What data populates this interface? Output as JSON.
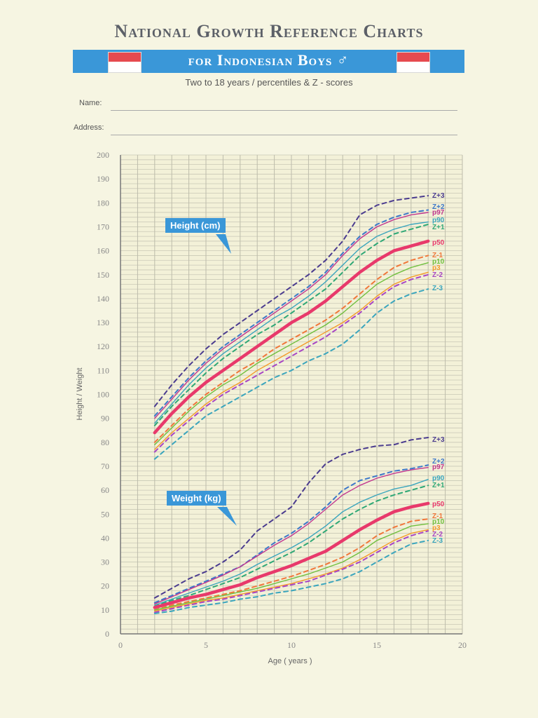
{
  "header": {
    "title": "National Growth Reference Charts",
    "banner": "for Indonesian Boys ♂",
    "subtitle": "Two to 18 years / percentiles & Z - scores"
  },
  "form": {
    "name_label": "Name:",
    "address_label": "Address:"
  },
  "annotations": {
    "height": "Height (cm)",
    "weight": "Weight (kg)"
  },
  "colors": {
    "Z+3": "#4b3c8f",
    "Z+2": "#3d78c9",
    "p97": "#c2378f",
    "p90": "#3aa5bd",
    "Z+1": "#2fa876",
    "p50": "#e8396b",
    "Z-1": "#f0773a",
    "p10": "#6fbf3d",
    "p3": "#f49b2a",
    "Z-2": "#a845c4",
    "Z-3": "#3aa5bd"
  },
  "chart_data": {
    "type": "line",
    "title": "National Growth Reference Charts for Indonesian Boys",
    "subtitle": "Two to 18 years / percentiles & Z - scores",
    "xlabel": "Age ( years )",
    "ylabel": "Height / Weight",
    "xlim": [
      0,
      20
    ],
    "ylim": [
      0,
      200
    ],
    "xticks": [
      0,
      5,
      10,
      15,
      20
    ],
    "yticks": [
      0,
      10,
      20,
      30,
      40,
      50,
      60,
      70,
      80,
      90,
      100,
      110,
      120,
      130,
      140,
      150,
      160,
      170,
      180,
      190,
      200
    ],
    "grid": true,
    "x": [
      2,
      3,
      4,
      5,
      6,
      7,
      8,
      9,
      10,
      11,
      12,
      13,
      14,
      15,
      16,
      17,
      18
    ],
    "height_series": [
      {
        "name": "Z+3",
        "dashed": true,
        "values": [
          95,
          104,
          112,
          119,
          125,
          130,
          135,
          140,
          145,
          150,
          156,
          164,
          175,
          179,
          181,
          182,
          183
        ]
      },
      {
        "name": "Z+2",
        "dashed": true,
        "values": [
          91,
          99,
          107,
          114,
          120,
          125,
          130,
          135,
          140,
          145,
          151,
          159,
          166,
          171,
          174,
          176,
          177
        ]
      },
      {
        "name": "p97",
        "dashed": false,
        "values": [
          90,
          98,
          106,
          113,
          119,
          124,
          129,
          134,
          139,
          144,
          150,
          158,
          165,
          170,
          173,
          175,
          176
        ]
      },
      {
        "name": "p90",
        "dashed": false,
        "values": [
          88,
          96,
          104,
          111,
          117,
          122,
          127,
          132,
          136,
          141,
          147,
          154,
          161,
          166,
          169,
          171,
          172
        ]
      },
      {
        "name": "Z+1",
        "dashed": true,
        "values": [
          87,
          95,
          102,
          109,
          115,
          120,
          125,
          129,
          134,
          139,
          144,
          151,
          158,
          163,
          167,
          169,
          171
        ]
      },
      {
        "name": "p50",
        "dashed": false,
        "values": [
          84,
          92,
          99,
          105,
          110,
          115,
          120,
          125,
          130,
          134,
          139,
          145,
          151,
          156,
          160,
          162,
          164
        ]
      },
      {
        "name": "Z-1",
        "dashed": true,
        "values": [
          80,
          87,
          94,
          100,
          105,
          110,
          114,
          119,
          123,
          127,
          131,
          136,
          142,
          148,
          153,
          156,
          158
        ]
      },
      {
        "name": "p10",
        "dashed": false,
        "values": [
          79,
          86,
          93,
          99,
          104,
          108,
          113,
          117,
          121,
          125,
          129,
          134,
          140,
          146,
          150,
          153,
          155
        ]
      },
      {
        "name": "p3",
        "dashed": false,
        "values": [
          77,
          84,
          90,
          96,
          101,
          105,
          110,
          114,
          118,
          122,
          126,
          130,
          135,
          141,
          146,
          149,
          151
        ]
      },
      {
        "name": "Z-2",
        "dashed": true,
        "values": [
          76,
          83,
          89,
          95,
          100,
          104,
          108,
          112,
          116,
          120,
          124,
          129,
          134,
          140,
          145,
          148,
          150
        ]
      },
      {
        "name": "Z-3",
        "dashed": true,
        "values": [
          73,
          79,
          85,
          91,
          95,
          99,
          103,
          107,
          110,
          114,
          117,
          121,
          127,
          134,
          139,
          142,
          144
        ]
      }
    ],
    "weight_series": [
      {
        "name": "Z+3",
        "dashed": true,
        "values": [
          15,
          19,
          23,
          26,
          30,
          35,
          43,
          48,
          53,
          63,
          71,
          75,
          77,
          78.5,
          79,
          81,
          82
        ]
      },
      {
        "name": "Z+2",
        "dashed": true,
        "values": [
          13,
          16,
          19,
          22,
          25,
          28,
          33,
          38,
          42,
          47,
          53,
          60,
          64,
          66,
          68,
          69,
          70.5
        ]
      },
      {
        "name": "p97",
        "dashed": false,
        "values": [
          12.5,
          15.5,
          18.5,
          21.5,
          24.5,
          28,
          32.5,
          37,
          41,
          46,
          52,
          58,
          62,
          65,
          67,
          68.5,
          69.5
        ]
      },
      {
        "name": "p90",
        "dashed": false,
        "values": [
          12,
          14.5,
          17,
          19.5,
          22,
          25,
          29,
          32.5,
          36,
          40,
          45,
          51,
          55,
          58,
          60.5,
          62,
          64.5
        ]
      },
      {
        "name": "Z+1",
        "dashed": true,
        "values": [
          11.5,
          14,
          16,
          18.5,
          21,
          23.5,
          27,
          30.5,
          34,
          38,
          43,
          48,
          52,
          55.5,
          58,
          60,
          62
        ]
      },
      {
        "name": "p50",
        "dashed": false,
        "values": [
          11,
          13,
          15,
          16.5,
          18.5,
          20.5,
          23.5,
          26,
          28.5,
          31.5,
          34.5,
          39,
          43.5,
          47.5,
          51,
          53,
          54.5
        ]
      },
      {
        "name": "Z-1",
        "dashed": true,
        "values": [
          10,
          12,
          13.5,
          15,
          16.5,
          18,
          20,
          22,
          24,
          26.5,
          29,
          32,
          36,
          41,
          44.5,
          47,
          48
        ]
      },
      {
        "name": "p10",
        "dashed": false,
        "values": [
          10,
          11.5,
          13,
          14.5,
          16,
          17.5,
          19,
          21,
          23,
          25,
          27.5,
          30,
          34,
          39,
          42,
          45,
          46
        ]
      },
      {
        "name": "p3",
        "dashed": false,
        "values": [
          9.5,
          11,
          12.5,
          14,
          15,
          16.5,
          18,
          19.5,
          21,
          23,
          25,
          27.5,
          31,
          35,
          39,
          42,
          43.5
        ]
      },
      {
        "name": "Z-2",
        "dashed": true,
        "values": [
          9,
          10.5,
          12,
          13.5,
          14.5,
          16,
          17.5,
          19,
          20.5,
          22,
          24.5,
          27,
          30,
          34,
          38,
          41,
          43
        ]
      },
      {
        "name": "Z-3",
        "dashed": true,
        "values": [
          8.5,
          9.5,
          11,
          12,
          13,
          14.5,
          15.5,
          17,
          18,
          19.5,
          21,
          23,
          26,
          30,
          34,
          37.5,
          39
        ]
      }
    ]
  }
}
